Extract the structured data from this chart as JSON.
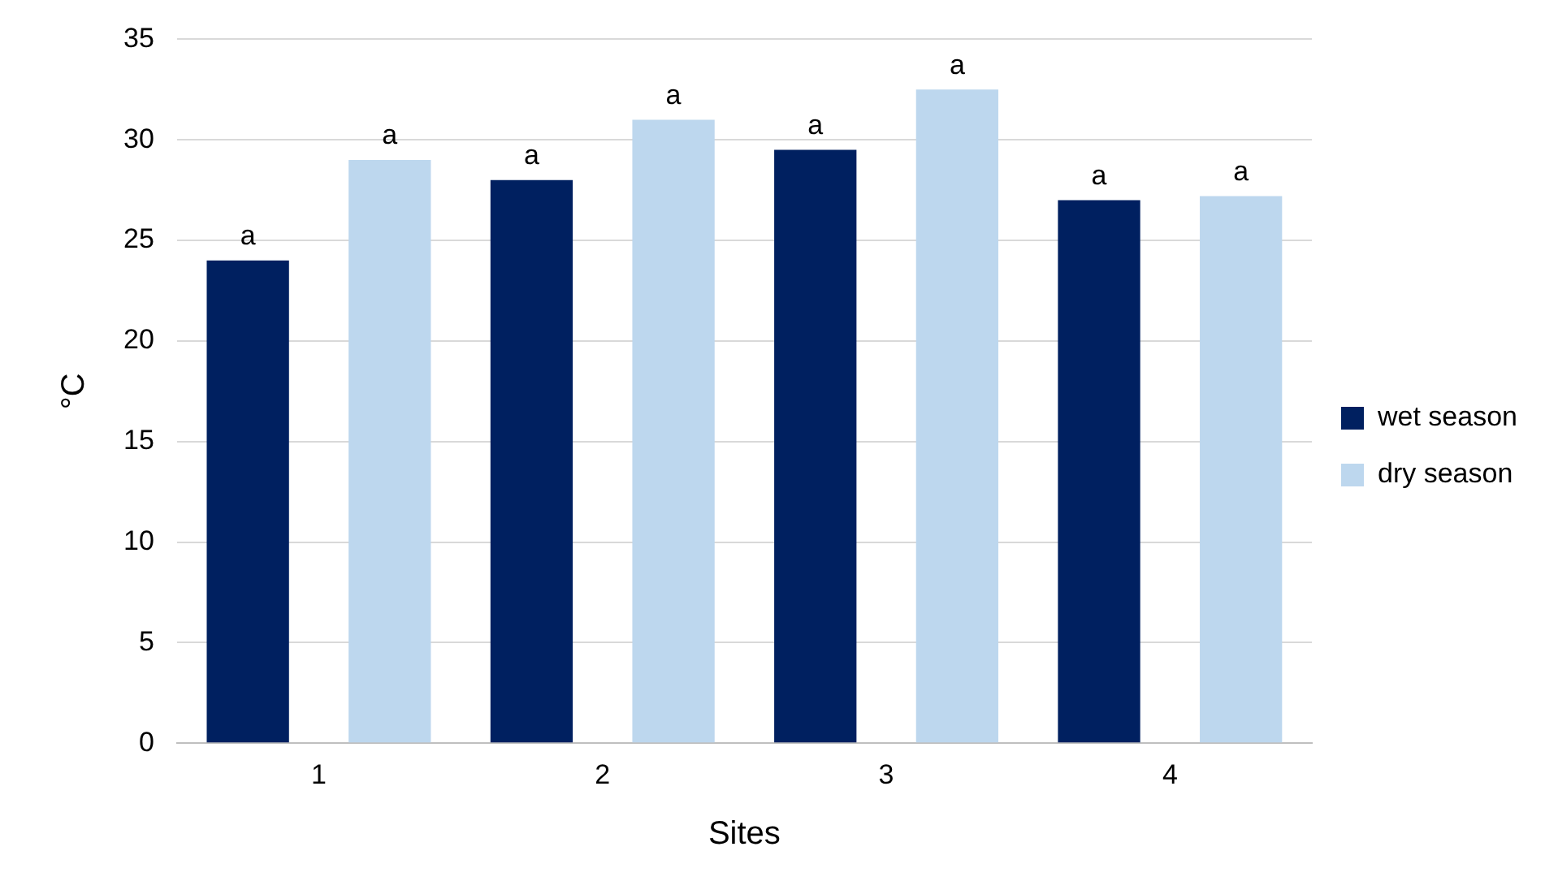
{
  "chart_data": {
    "type": "bar",
    "xlabel": "Sites",
    "ylabel": "°C",
    "categories": [
      "1",
      "2",
      "3",
      "4"
    ],
    "series": [
      {
        "name": "wet season",
        "color": "#002060",
        "values": [
          24,
          28,
          29.5,
          27
        ],
        "value_labels": [
          "a",
          "a",
          "a",
          "a"
        ]
      },
      {
        "name": "dry season",
        "color": "#bdd7ee",
        "values": [
          29,
          31,
          32.5,
          27.2
        ],
        "value_labels": [
          "a",
          "a",
          "a",
          "a"
        ]
      }
    ],
    "ylim": [
      0,
      35
    ],
    "yticks": [
      0,
      5,
      10,
      15,
      20,
      25,
      30,
      35
    ],
    "grid": "y",
    "legend": "right"
  }
}
